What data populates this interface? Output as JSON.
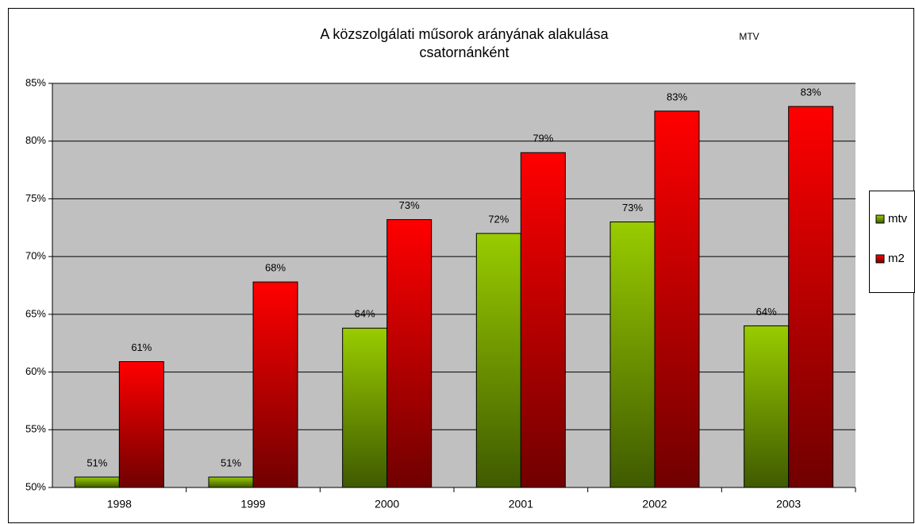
{
  "chart_data": {
    "type": "bar",
    "title": [
      "A közszolgálati műsorok arányának alakulása",
      "csatornánként"
    ],
    "annotation": "MTV",
    "categories": [
      "1998",
      "1999",
      "2000",
      "2001",
      "2002",
      "2003"
    ],
    "series": [
      {
        "name": "mtv",
        "color": "#99cc00",
        "values": [
          50.9,
          50.9,
          63.8,
          72,
          73,
          64
        ],
        "value_labels": [
          "51%",
          "51%",
          "64%",
          "72%",
          "73%",
          "64%"
        ]
      },
      {
        "name": "m2",
        "color": "#ff0000",
        "values": [
          60.9,
          67.8,
          73.2,
          79,
          82.6,
          83
        ],
        "value_labels": [
          "61%",
          "68%",
          "73%",
          "79%",
          "83%",
          "83%"
        ]
      }
    ],
    "ylim": [
      50,
      85
    ],
    "yticks": [
      {
        "value": 50,
        "label": "50%"
      },
      {
        "value": 55,
        "label": "55%"
      },
      {
        "value": 60,
        "label": "60%"
      },
      {
        "value": 65,
        "label": "65%"
      },
      {
        "value": 70,
        "label": "70%"
      },
      {
        "value": 75,
        "label": "75%"
      },
      {
        "value": 80,
        "label": "80%"
      },
      {
        "value": 85,
        "label": "85%"
      }
    ],
    "grid": true,
    "legend": "right"
  }
}
